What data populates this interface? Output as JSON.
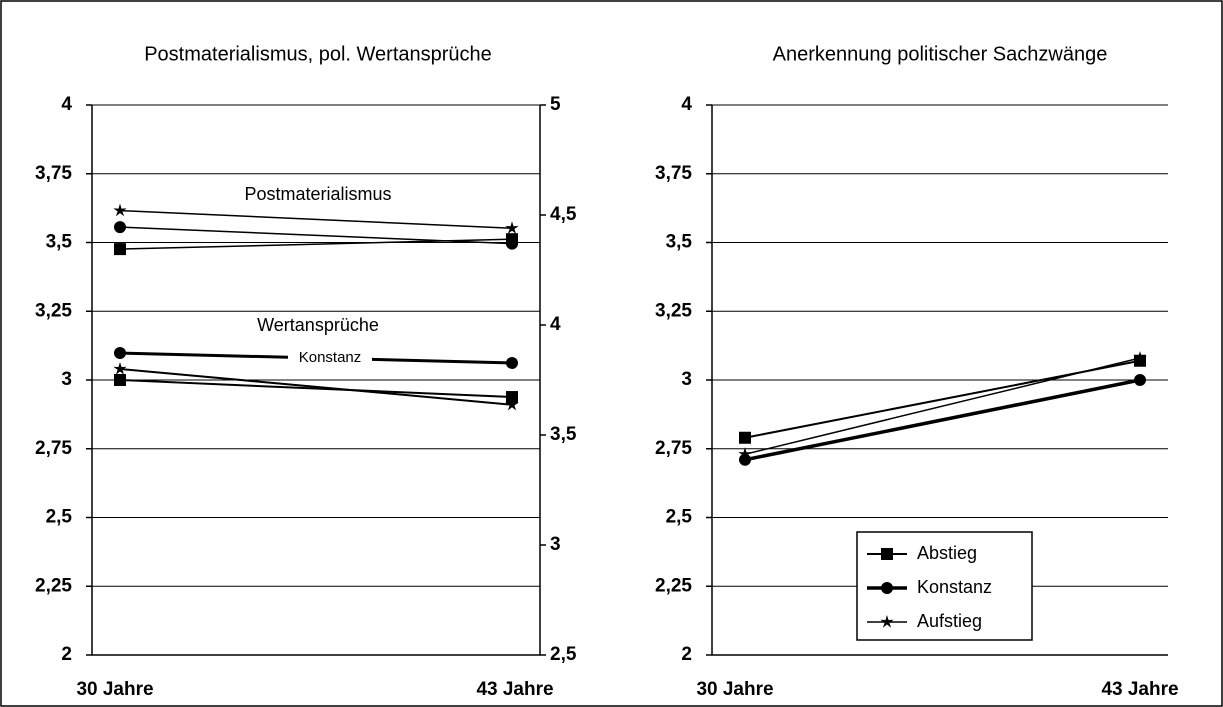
{
  "chart_data": [
    {
      "type": "line",
      "title": "Postmaterialismus, pol. Wertansprüche",
      "categories": [
        "30 Jahre",
        "43 Jahre"
      ],
      "ylim": [
        2,
        4
      ],
      "yticks": [
        2,
        {
          "value": 2.25,
          "label": "2,25"
        },
        {
          "value": 2.5,
          "label": "2,5"
        },
        {
          "value": 2.75,
          "label": "2,75"
        },
        3,
        {
          "value": 3.25,
          "label": "3,25"
        },
        {
          "value": 3.5,
          "label": "3,5"
        },
        {
          "value": 3.75,
          "label": "3,75"
        },
        4
      ],
      "y2lim": [
        2.5,
        5
      ],
      "y2ticks": [
        {
          "value": 2.5,
          "label": "2,5"
        },
        3,
        {
          "value": 3.5,
          "label": "3,5"
        },
        4,
        {
          "value": 4.5,
          "label": "4,5"
        },
        5
      ],
      "grid": true,
      "series": [
        {
          "marker": "star",
          "color": "#000000",
          "line_width": 1.5,
          "axis": "y2",
          "values": [
            4.52,
            4.44
          ]
        },
        {
          "marker": "circle",
          "color": "#000000",
          "line_width": 1.5,
          "axis": "y2",
          "values": [
            4.445,
            4.37
          ]
        },
        {
          "marker": "square",
          "color": "#000000",
          "line_width": 1.5,
          "axis": "y2",
          "values": [
            4.345,
            4.39
          ]
        },
        {
          "marker": "circle",
          "color": "#000000",
          "line_width": 3,
          "values": [
            3.098,
            3.062
          ]
        },
        {
          "marker": "square",
          "color": "#000000",
          "line_width": 2,
          "values": [
            3.0,
            2.938
          ]
        },
        {
          "marker": "star",
          "color": "#000000",
          "line_width": 2,
          "values": [
            3.04,
            2.91
          ]
        }
      ],
      "annotations": [
        "Postmaterialismus",
        "Wertansprüche",
        "Konstanz"
      ]
    },
    {
      "type": "line",
      "title": "Anerkennung politischer Sachzwänge",
      "categories": [
        "30 Jahre",
        "43 Jahre"
      ],
      "ylim": [
        2,
        4
      ],
      "yticks": [
        2,
        {
          "value": 2.25,
          "label": "2,25"
        },
        {
          "value": 2.5,
          "label": "2,5"
        },
        {
          "value": 2.75,
          "label": "2,75"
        },
        3,
        {
          "value": 3.25,
          "label": "3,25"
        },
        {
          "value": 3.5,
          "label": "3,5"
        },
        {
          "value": 3.75,
          "label": "3,75"
        },
        4
      ],
      "grid": true,
      "legend": "lower-center",
      "series": [
        {
          "name": "Abstieg",
          "marker": "square",
          "color": "#000000",
          "line_width": 2,
          "values": [
            2.79,
            3.07
          ]
        },
        {
          "name": "Konstanz",
          "marker": "circle",
          "color": "#000000",
          "line_width": 3.5,
          "values": [
            2.71,
            3.0
          ]
        },
        {
          "name": "Aufstieg",
          "marker": "star",
          "color": "#000000",
          "line_width": 1.5,
          "values": [
            2.73,
            3.08
          ]
        }
      ]
    }
  ]
}
